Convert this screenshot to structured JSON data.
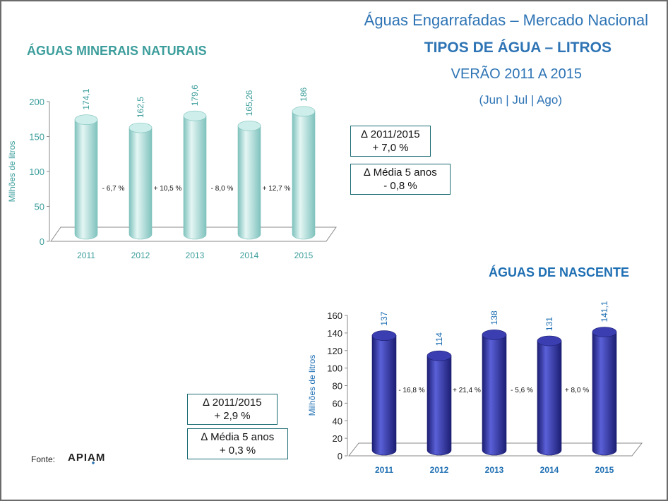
{
  "header": {
    "line1": "Águas Engarrafadas – Mercado Nacional",
    "line2": "TIPOS DE ÁGUA – LITROS",
    "line3": "VERÃO 2011  A 2015",
    "line4": "(Jun | Jul | Ago)"
  },
  "colors": {
    "title_blue": "#2e74b5",
    "chart1_title": "#3c9e9c",
    "chart1_bar": "#a9dedb",
    "chart2_title": "#1e6fb3",
    "chart2_bar": "#2b2d8f"
  },
  "chart_data": [
    {
      "type": "bar",
      "title": "ÁGUAS MINERAIS NATURAIS",
      "ylabel": "Milhões de litros",
      "categories": [
        "2011",
        "2012",
        "2013",
        "2014",
        "2015"
      ],
      "values": [
        174.1,
        162.5,
        179.6,
        165.26,
        186
      ],
      "value_labels": [
        "174,1",
        "162,5",
        "179,6",
        "165,26",
        "186"
      ],
      "changes": [
        "- 6,7 %",
        "+ 10,5 %",
        "- 8,0 %",
        "+ 12,7 %"
      ],
      "ylim": [
        0,
        200
      ],
      "yticks": [
        "0",
        "50",
        "100",
        "150",
        "200"
      ],
      "ytick_values": [
        0,
        50,
        100,
        150,
        200
      ]
    },
    {
      "type": "bar",
      "title": "ÁGUAS DE NASCENTE",
      "ylabel": "Milhões de litros",
      "categories": [
        "2011",
        "2012",
        "2013",
        "2014",
        "2015"
      ],
      "values": [
        137,
        114,
        138,
        131,
        141.1
      ],
      "value_labels": [
        "137",
        "114",
        "138",
        "131",
        "141,1"
      ],
      "changes": [
        "- 16,8 %",
        "+ 21,4 %",
        "- 5,6 %",
        "+ 8,0 %"
      ],
      "ylim": [
        0,
        160
      ],
      "yticks": [
        "0",
        "20",
        "40",
        "60",
        "80",
        "100",
        "120",
        "140",
        "160"
      ],
      "ytick_values": [
        0,
        20,
        40,
        60,
        80,
        100,
        120,
        140,
        160
      ]
    }
  ],
  "boxes": {
    "mineral_delta_label": "∆ 2011/2015",
    "mineral_delta_value": "+ 7,0 %",
    "mineral_avg_label": "∆ Média 5 anos",
    "mineral_avg_value": "- 0,8 %",
    "spring_delta_label": "∆ 2011/2015",
    "spring_delta_value": "+ 2,9 %",
    "spring_avg_label": "∆ Média 5 anos",
    "spring_avg_value": "+ 0,3 %"
  },
  "source": {
    "label": "Fonte:",
    "logo_text": "APIAM"
  }
}
